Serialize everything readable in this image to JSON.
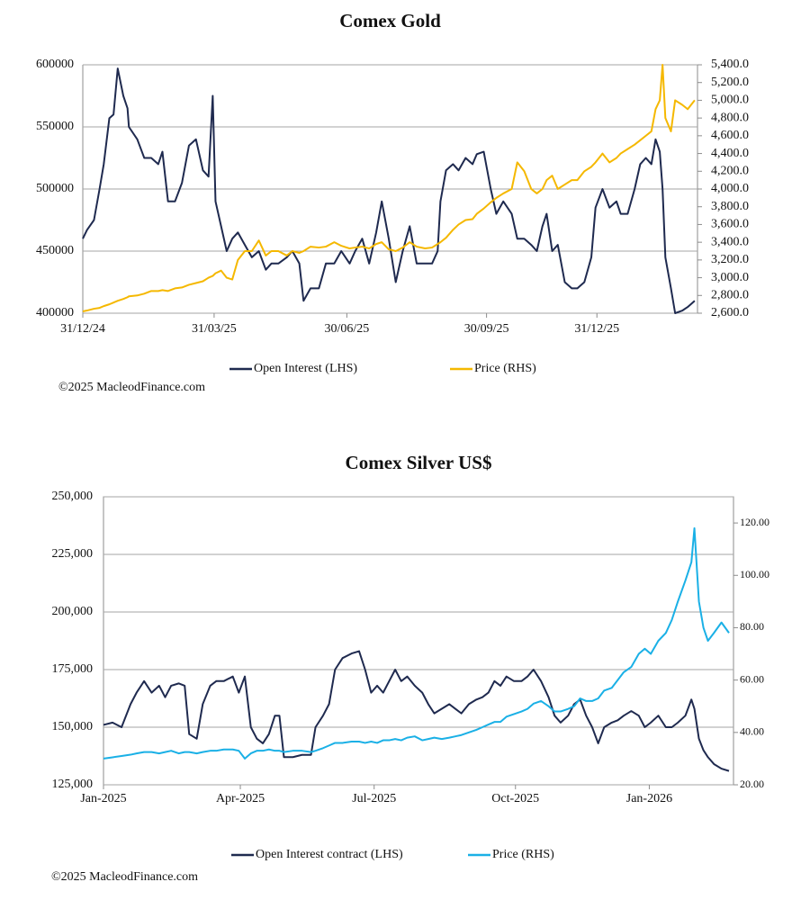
{
  "chart_data": [
    {
      "type": "line",
      "title": "Comex Gold",
      "footnote": "©2025 MacleodFinance.com",
      "grid": true,
      "x": [
        0,
        3,
        8,
        12,
        15,
        19,
        22,
        25,
        29,
        32,
        33,
        39,
        44,
        49,
        54,
        57,
        61,
        66,
        71,
        76,
        81,
        86,
        90,
        93,
        95,
        99,
        103,
        107,
        111,
        116,
        121,
        126,
        131,
        135,
        140,
        146,
        150,
        155,
        158,
        163,
        169,
        174,
        180,
        185,
        191,
        195,
        200,
        205,
        210,
        214,
        219,
        224,
        229,
        234,
        239,
        245,
        250,
        254,
        256,
        260,
        265,
        269,
        274,
        279,
        282,
        287,
        292,
        296,
        301,
        307,
        311,
        316,
        321,
        325,
        329,
        332,
        336,
        340,
        345,
        350,
        354,
        359,
        364,
        367,
        372,
        377,
        382,
        385,
        390,
        395,
        399,
        403,
        407,
        410,
        413,
        415,
        417,
        421,
        424,
        429,
        433,
        438
      ],
      "xlim": [
        0,
        440
      ],
      "xticks": [
        {
          "value": 0,
          "label": "31/12/24"
        },
        {
          "value": 94,
          "label": "31/03/25"
        },
        {
          "value": 189,
          "label": "30/06/25"
        },
        {
          "value": 289,
          "label": "30/09/25"
        },
        {
          "value": 368,
          "label": "31/12/25"
        }
      ],
      "ylim": [
        400000,
        600000
      ],
      "yticks": [
        400000,
        450000,
        500000,
        550000,
        600000
      ],
      "y2lim": [
        2600,
        5400
      ],
      "y2ticks": [
        {
          "value": 2600,
          "label": "2,600.0"
        },
        {
          "value": 2800,
          "label": "2,800.0"
        },
        {
          "value": 3000,
          "label": "3,000.0"
        },
        {
          "value": 3200,
          "label": "3,200.0"
        },
        {
          "value": 3400,
          "label": "3,400.0"
        },
        {
          "value": 3600,
          "label": "3,600.0"
        },
        {
          "value": 3800,
          "label": "3,800.0"
        },
        {
          "value": 4000,
          "label": "4,000.0"
        },
        {
          "value": 4200,
          "label": "4,200.0"
        },
        {
          "value": 4400,
          "label": "4,400.0"
        },
        {
          "value": 4600,
          "label": "4,600.0"
        },
        {
          "value": 4800,
          "label": "4,800.0"
        },
        {
          "value": 5000,
          "label": "5,000.0"
        },
        {
          "value": 5200,
          "label": "5,200.0"
        },
        {
          "value": 5400,
          "label": "5,400.0"
        }
      ],
      "series": [
        {
          "name": "Open Interest (LHS)",
          "color": "#1f2a4f",
          "values": [
            460000,
            467000,
            475000,
            500000,
            520000,
            557000,
            560000,
            597000,
            575000,
            565000,
            550000,
            540000,
            525000,
            525000,
            520000,
            530000,
            490000,
            490000,
            505000,
            535000,
            540000,
            515000,
            510000,
            575000,
            490000,
            470000,
            450000,
            460000,
            465000,
            455000,
            445000,
            450000,
            435000,
            440000,
            440000,
            445000,
            450000,
            440000,
            410000,
            420000,
            420000,
            440000,
            440000,
            450000,
            440000,
            450000,
            460000,
            440000,
            465000,
            490000,
            460000,
            425000,
            450000,
            470000,
            440000,
            440000,
            440000,
            450000,
            490000,
            515000,
            520000,
            515000,
            525000,
            520000,
            528000,
            530000,
            500000,
            480000,
            490000,
            480000,
            460000,
            460000,
            455000,
            450000,
            470000,
            480000,
            450000,
            455000,
            425000,
            420000,
            420000,
            425000,
            445000,
            485000,
            500000,
            485000,
            490000,
            480000,
            480000,
            500000,
            520000,
            525000,
            520000,
            540000,
            530000,
            500000,
            445000,
            420000,
            400000,
            402000,
            405000,
            410000
          ]
        },
        {
          "name": "Price (RHS)",
          "color": "#f5b800",
          "axis": "y2",
          "values": [
            2620,
            2630,
            2650,
            2660,
            2680,
            2700,
            2720,
            2740,
            2760,
            2780,
            2790,
            2800,
            2820,
            2850,
            2850,
            2860,
            2850,
            2880,
            2890,
            2920,
            2940,
            2960,
            3000,
            3020,
            3050,
            3080,
            3000,
            2980,
            3200,
            3300,
            3300,
            3420,
            3250,
            3300,
            3300,
            3250,
            3300,
            3280,
            3300,
            3350,
            3340,
            3350,
            3400,
            3360,
            3330,
            3340,
            3350,
            3330,
            3380,
            3400,
            3320,
            3300,
            3340,
            3400,
            3350,
            3330,
            3340,
            3380,
            3400,
            3450,
            3540,
            3600,
            3650,
            3660,
            3720,
            3780,
            3850,
            3900,
            3950,
            4000,
            4300,
            4200,
            4000,
            3950,
            4000,
            4100,
            4150,
            4000,
            4050,
            4100,
            4100,
            4200,
            4250,
            4300,
            4400,
            4300,
            4350,
            4400,
            4450,
            4500,
            4550,
            4600,
            4650,
            4900,
            5000,
            5400,
            4800,
            4650,
            5000,
            4950,
            4900,
            5000
          ]
        }
      ]
    },
    {
      "type": "line",
      "title": "Comex Silver US$",
      "footnote": "©2025 MacleodFinance.com",
      "grid": true,
      "x": [
        0,
        6,
        12,
        18,
        22,
        27,
        32,
        37,
        41,
        45,
        50,
        54,
        57,
        62,
        66,
        71,
        75,
        80,
        86,
        90,
        94,
        98,
        102,
        106,
        110,
        114,
        117,
        120,
        126,
        132,
        138,
        141,
        146,
        150,
        154,
        159,
        165,
        170,
        174,
        178,
        182,
        186,
        190,
        194,
        198,
        202,
        207,
        212,
        216,
        220,
        225,
        230,
        234,
        238,
        243,
        248,
        252,
        256,
        260,
        264,
        268,
        273,
        278,
        282,
        286,
        291,
        296,
        300,
        304,
        309,
        313,
        317,
        321,
        325,
        329,
        333,
        338,
        342,
        346,
        351,
        356,
        360,
        364,
        369,
        374,
        378,
        382,
        387,
        391,
        393,
        396,
        399,
        402,
        406,
        411,
        416
      ],
      "xlim": [
        0,
        419
      ],
      "xticks": [
        {
          "value": 0,
          "label": "Jan-2025"
        },
        {
          "value": 91,
          "label": "Apr-2025"
        },
        {
          "value": 180,
          "label": "Jul-2025"
        },
        {
          "value": 274,
          "label": "Oct-2025"
        },
        {
          "value": 363,
          "label": "Jan-2026"
        }
      ],
      "ylim": [
        125000,
        250000
      ],
      "yticks": [
        {
          "value": 125000,
          "label": "125,000"
        },
        {
          "value": 150000,
          "label": "150,000"
        },
        {
          "value": 175000,
          "label": "175,000"
        },
        {
          "value": 200000,
          "label": "200,000"
        },
        {
          "value": 225000,
          "label": "225,000"
        },
        {
          "value": 250000,
          "label": "250,000"
        }
      ],
      "y2lim": [
        20,
        130
      ],
      "y2ticks": [
        {
          "value": 20,
          "label": "20.00"
        },
        {
          "value": 40,
          "label": "40.00"
        },
        {
          "value": 60,
          "label": "60.00"
        },
        {
          "value": 80,
          "label": "80.00"
        },
        {
          "value": 100,
          "label": "100.00"
        },
        {
          "value": 120,
          "label": "120.00"
        }
      ],
      "series": [
        {
          "name": "Open Interest contract (LHS)",
          "color": "#1f2a4f",
          "values": [
            151000,
            152000,
            150000,
            160000,
            165000,
            170000,
            165000,
            168000,
            163000,
            168000,
            169000,
            168000,
            147000,
            145000,
            160000,
            168000,
            170000,
            170000,
            172000,
            165000,
            172000,
            150000,
            145000,
            143000,
            147000,
            155000,
            155000,
            137000,
            137000,
            138000,
            138000,
            150000,
            155000,
            160000,
            175000,
            180000,
            182000,
            183000,
            175000,
            165000,
            168000,
            165000,
            170000,
            175000,
            170000,
            172000,
            168000,
            165000,
            160000,
            156000,
            158000,
            160000,
            158000,
            156000,
            160000,
            162000,
            163000,
            165000,
            170000,
            168000,
            172000,
            170000,
            170000,
            172000,
            175000,
            170000,
            163000,
            155000,
            152000,
            155000,
            160000,
            162000,
            155000,
            150000,
            143000,
            150000,
            152000,
            153000,
            155000,
            157000,
            155000,
            150000,
            152000,
            155000,
            150000,
            150000,
            152000,
            155000,
            162000,
            158000,
            145000,
            140000,
            137000,
            134000,
            132000,
            131000
          ]
        },
        {
          "name": "Price (RHS)",
          "color": "#1ab0e6",
          "axis": "y2",
          "values": [
            30,
            30.5,
            31,
            31.5,
            32,
            32.5,
            32.5,
            32,
            32.5,
            33,
            32,
            32.5,
            32.5,
            32,
            32.5,
            33,
            33,
            33.5,
            33.5,
            33,
            30,
            32,
            33,
            33,
            33.5,
            33,
            33,
            32.5,
            33,
            33,
            32.5,
            33,
            34,
            35,
            36,
            36,
            36.5,
            36.5,
            36,
            36.5,
            36,
            37,
            37,
            37.5,
            37,
            38,
            38.5,
            37,
            37.5,
            38,
            37.5,
            38,
            38.5,
            39,
            40,
            41,
            42,
            43,
            44,
            44,
            46,
            47,
            48,
            49,
            51,
            52,
            50,
            48,
            48,
            49,
            50,
            53,
            52,
            52,
            53,
            56,
            57,
            60,
            63,
            65,
            70,
            72,
            70,
            75,
            78,
            83,
            90,
            98,
            105,
            118,
            90,
            80,
            75,
            78,
            82,
            78
          ]
        }
      ]
    }
  ]
}
